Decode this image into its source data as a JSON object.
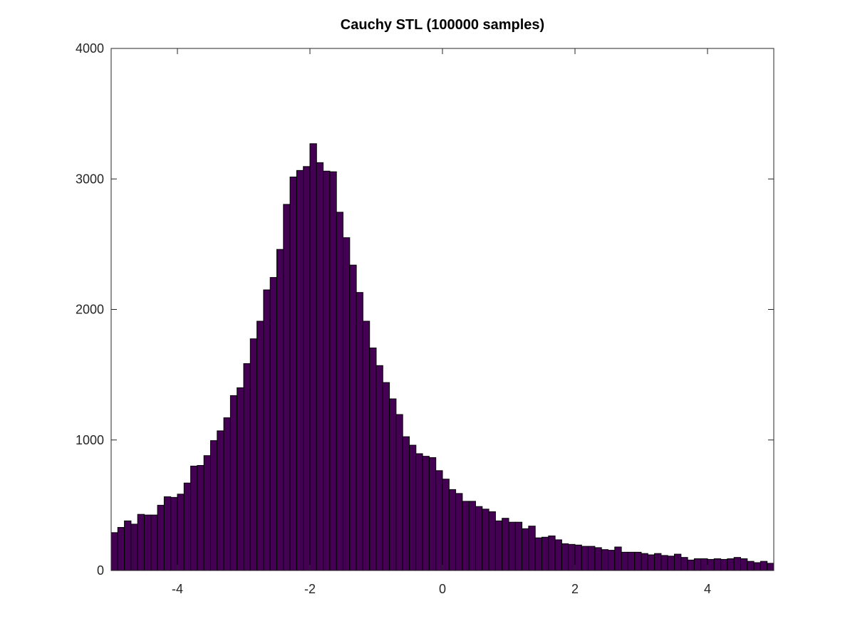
{
  "chart_data": {
    "type": "bar",
    "title": "Cauchy STL (100000 samples)",
    "xlabel": "",
    "ylabel": "",
    "xlim": [
      -5,
      5
    ],
    "ylim": [
      0,
      4000
    ],
    "x_ticks": [
      -4,
      -2,
      0,
      2,
      4
    ],
    "x_tick_labels": [
      "-4",
      "-2",
      "0",
      "2",
      "4"
    ],
    "y_ticks": [
      0,
      1000,
      2000,
      3000,
      4000
    ],
    "y_tick_labels": [
      "0",
      "1000",
      "2000",
      "3000",
      "4000"
    ],
    "bin_range": [
      -5,
      5
    ],
    "bin_count": 100,
    "grid": false,
    "legend": "none",
    "bar_color": "#440154",
    "edge_color": "#000000",
    "values": [
      290,
      330,
      380,
      355,
      430,
      425,
      425,
      500,
      565,
      560,
      585,
      670,
      800,
      805,
      880,
      995,
      1070,
      1170,
      1340,
      1400,
      1585,
      1775,
      1910,
      2150,
      2245,
      2460,
      2805,
      3015,
      3065,
      3095,
      3270,
      3125,
      3060,
      3055,
      2745,
      2550,
      2340,
      2130,
      1910,
      1705,
      1570,
      1440,
      1315,
      1195,
      1025,
      960,
      895,
      875,
      865,
      765,
      700,
      620,
      590,
      530,
      530,
      490,
      470,
      450,
      380,
      400,
      370,
      370,
      320,
      340,
      250,
      255,
      265,
      235,
      205,
      200,
      195,
      185,
      185,
      175,
      160,
      155,
      180,
      140,
      140,
      140,
      130,
      120,
      130,
      115,
      110,
      125,
      100,
      80,
      90,
      90,
      85,
      90,
      85,
      90,
      100,
      90,
      70,
      60,
      70,
      55
    ]
  }
}
